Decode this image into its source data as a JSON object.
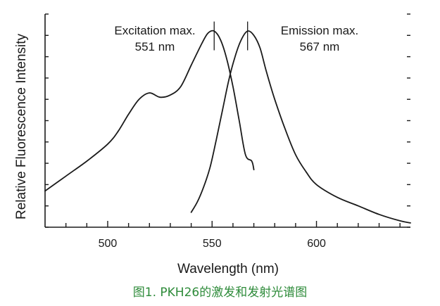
{
  "chart_data": {
    "type": "line",
    "title": "",
    "xlabel": "Wavelength (nm)",
    "ylabel": "Relative Fluorescence Intensity",
    "xlim": [
      470,
      645
    ],
    "ylim": [
      0,
      1.0
    ],
    "x_ticks": [
      500,
      550,
      600
    ],
    "x_tick_labels": [
      "500",
      "550",
      "600"
    ],
    "grid": false,
    "series": [
      {
        "name": "Excitation",
        "x": [
          470,
          480,
          490,
          500,
          505,
          510,
          515,
          520,
          525,
          530,
          535,
          540,
          545,
          548,
          551,
          554,
          557,
          560,
          563,
          566,
          569,
          570
        ],
        "y": [
          0.17,
          0.24,
          0.31,
          0.39,
          0.45,
          0.53,
          0.6,
          0.63,
          0.61,
          0.62,
          0.66,
          0.76,
          0.86,
          0.91,
          0.92,
          0.88,
          0.79,
          0.66,
          0.5,
          0.34,
          0.31,
          0.27
        ]
      },
      {
        "name": "Emission",
        "x": [
          540,
          543,
          546,
          549,
          552,
          555,
          558,
          561,
          564,
          567,
          570,
          573,
          576,
          580,
          585,
          590,
          595,
          600,
          610,
          620,
          630,
          640,
          645
        ],
        "y": [
          0.07,
          0.12,
          0.19,
          0.28,
          0.41,
          0.55,
          0.69,
          0.8,
          0.88,
          0.92,
          0.9,
          0.84,
          0.73,
          0.6,
          0.46,
          0.34,
          0.26,
          0.2,
          0.14,
          0.1,
          0.06,
          0.03,
          0.02
        ]
      }
    ],
    "annotations": [
      {
        "line1": "Excitation max.",
        "line2": "551 nm",
        "x": 551
      },
      {
        "line1": "Emission max.",
        "line2": "567 nm",
        "x": 567
      }
    ],
    "caption": "图1. PKH26的激发和发射光谱图"
  }
}
